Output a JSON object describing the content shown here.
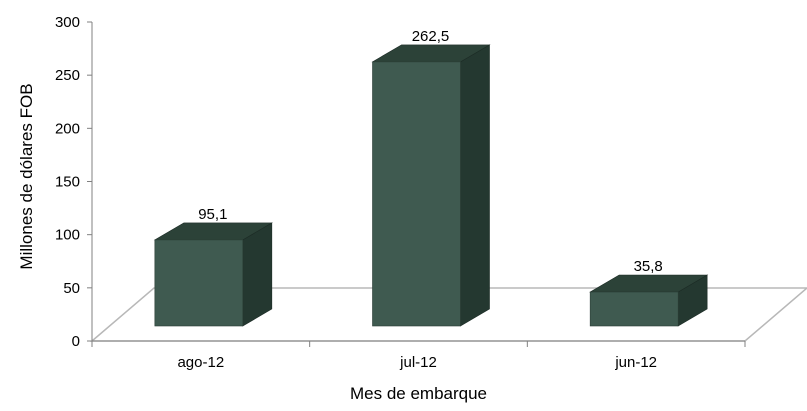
{
  "chart_data": {
    "type": "bar",
    "categories": [
      "ago-12",
      "jul-12",
      "jun-12"
    ],
    "values": [
      95.1,
      262.5,
      35.8
    ],
    "value_labels": [
      "95,1",
      "262,5",
      "35,8"
    ],
    "xlabel": "Mes de embarque",
    "ylabel": "Millones de dólares FOB",
    "ylim": [
      0,
      300
    ],
    "yticks": [
      "0",
      "50",
      "100",
      "150",
      "200",
      "250",
      "300"
    ],
    "grid": false,
    "legend": "none",
    "style": "3d-column",
    "colors": {
      "bar_front": "#3f5a50",
      "bar_top": "#2c4238",
      "bar_side": "#243830",
      "floor_stroke": "#b8b8b8",
      "axis": "#808080"
    }
  }
}
